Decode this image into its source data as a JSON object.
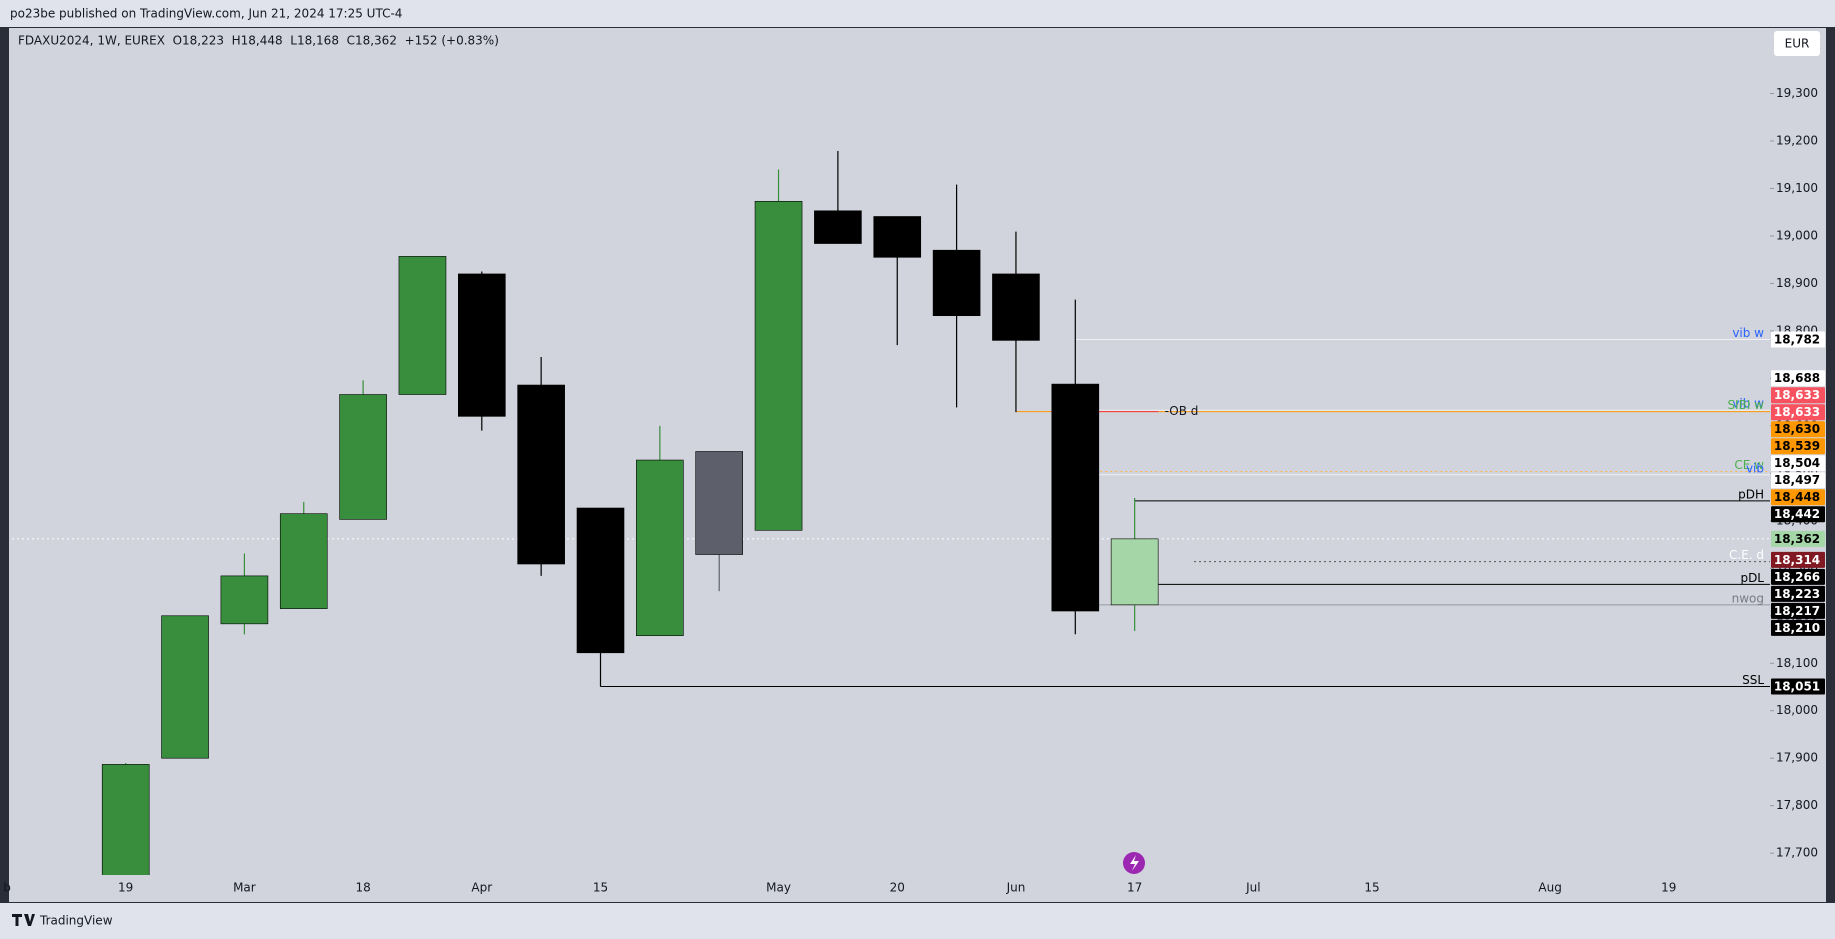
{
  "header": "po23be published on TradingView.com, Jun 21, 2024 17:25 UTC-4",
  "footer": "TradingView",
  "chart_data": {
    "type": "candlestick",
    "title": "FDAXU2024, 1W, EUREX  O18,223  H18,448  L18,168  C18,362  +152 (+0.83%)",
    "currency": "EUR",
    "categories": [
      "b",
      null,
      "19",
      null,
      "Mar",
      null,
      "18",
      null,
      "Apr",
      null,
      "15",
      null,
      null,
      "May",
      null,
      "20",
      null,
      "Jun",
      null,
      "17",
      null,
      "Jul",
      null,
      "15",
      null,
      null,
      "Aug",
      null,
      "19",
      null
    ],
    "open": [
      null,
      null,
      17600,
      17900,
      18183,
      18215,
      18403,
      18666,
      18920,
      18686,
      18427,
      18158,
      18546,
      18380,
      19053,
      19041,
      18970,
      18920,
      18688,
      18223,
      null,
      null,
      null,
      null,
      null,
      null,
      null,
      null,
      null,
      null
    ],
    "high": [
      null,
      null,
      17890,
      18200,
      18331,
      18440,
      18696,
      18957,
      18925,
      18745,
      18427,
      18600,
      18546,
      19140,
      19179,
      19041,
      19108,
      19009,
      18866,
      18448,
      null,
      null,
      null,
      null,
      null,
      null,
      null,
      null,
      null,
      null
    ],
    "low": [
      null,
      null,
      17580,
      17900,
      18161,
      18215,
      18403,
      18666,
      18590,
      18284,
      18051,
      18158,
      18252,
      18380,
      18984,
      18770,
      18639,
      18629,
      18161,
      18168,
      null,
      null,
      null,
      null,
      null,
      null,
      null,
      null,
      null,
      null
    ],
    "close": [
      null,
      null,
      17887,
      18200,
      18284,
      18415,
      18666,
      18957,
      18620,
      18309,
      18122,
      18528,
      18329,
      19073,
      18984,
      18955,
      18832,
      18780,
      18210,
      18362,
      null,
      null,
      null,
      null,
      null,
      null,
      null,
      null,
      null,
      null
    ],
    "colors": [
      null,
      null,
      "#388e3c",
      "#388e3c",
      "#388e3c",
      "#388e3c",
      "#388e3c",
      "#388e3c",
      "#000000",
      "#000000",
      "#000000",
      "#388e3c",
      "#5d606b",
      "#388e3c",
      "#000000",
      "#000000",
      "#000000",
      "#000000",
      "#000000",
      "#a5d6a7",
      null,
      null,
      null,
      null,
      null,
      null,
      null,
      null,
      null,
      null
    ],
    "ylim": [
      17654,
      19438
    ],
    "yticks": [
      {
        "value": 17700,
        "label": "17,700"
      },
      {
        "value": 17800,
        "label": "17,800"
      },
      {
        "value": 17900,
        "label": "17,900"
      },
      {
        "value": 18000,
        "label": "18,000"
      },
      {
        "value": 18100,
        "label": "18,100"
      },
      {
        "value": 18200,
        "label": "18,200"
      },
      {
        "value": 18300,
        "label": "18,300"
      },
      {
        "value": 18400,
        "label": "18,400"
      },
      {
        "value": 18500,
        "label": "18,500"
      },
      {
        "value": 18600,
        "label": "18,600"
      },
      {
        "value": 18700,
        "label": "18,700"
      },
      {
        "value": 18800,
        "label": "18,800"
      },
      {
        "value": 18900,
        "label": "18,900"
      },
      {
        "value": 19000,
        "label": "19,000"
      },
      {
        "value": 19100,
        "label": "19,100"
      },
      {
        "value": 19200,
        "label": "19,200"
      },
      {
        "value": 19300,
        "label": "19,300"
      }
    ],
    "grid": false,
    "levels": [
      {
        "value": 18782,
        "label": "18,782",
        "bg": "#ffffff",
        "fg": "#000000",
        "text": "vib w",
        "text_color": "#2962ff",
        "line": "#f0f0f5",
        "start": 18
      },
      {
        "value": 18688,
        "label": "18,688",
        "bg": "#ffffff",
        "fg": "#000000"
      },
      {
        "value": 18633,
        "label": "18,633",
        "bg": "#f7525f",
        "fg": "#ffffff",
        "text": "vib w",
        "text_color": "#2962ff",
        "line": "#f0f0f5",
        "start": 18
      },
      {
        "value": 18633,
        "label": "18,633",
        "bg": "#f7525f",
        "fg": "#ffffff"
      },
      {
        "value": 18630,
        "label": "18,630",
        "bg": "#ff9800",
        "fg": "#000000",
        "text": "SIBI w",
        "text_color": "#4caf50",
        "line": "#ff9800",
        "start": 17,
        "inner": "-OB d",
        "inner_color": "#f23645"
      },
      {
        "value": 18539,
        "label": "18,539",
        "bg": "#ff9800",
        "fg": "#000000"
      },
      {
        "value": 18504,
        "label": "18,504",
        "bg": "#ffffff",
        "fg": "#000000",
        "text": "CE w",
        "text_color": "#4caf50",
        "line": "#ffb74d",
        "start": 18,
        "dash": true
      },
      {
        "value": 18497,
        "label": "18,497",
        "bg": "#ffffff",
        "fg": "#000000",
        "text": "vib",
        "text_color": "#2962ff",
        "line": "#f0f0f5",
        "start": 18
      },
      {
        "value": 18448,
        "label": "18,448",
        "bg": "#ff9800",
        "fg": "#000000"
      },
      {
        "value": 18442,
        "label": "18,442",
        "bg": "#000000",
        "fg": "#ffffff",
        "text": "pDH",
        "text_color": "#000000",
        "line": "#000000",
        "start": 19
      },
      {
        "value": 18362,
        "label": "18,362",
        "bg": "#a5d6a7",
        "fg": "#000000",
        "line": "#ffffff",
        "start": 0,
        "dash": true
      },
      {
        "value": 18314,
        "label": "18,314",
        "bg": "#801922",
        "fg": "#ffffff",
        "text": "C.E. d",
        "text_color": "#ffffff",
        "line": "#555555",
        "start": 20,
        "dash": true
      },
      {
        "value": 18266,
        "label": "18,266",
        "bg": "#000000",
        "fg": "#ffffff",
        "text": "pDL",
        "text_color": "#000000",
        "line": "#000000",
        "start": 19
      },
      {
        "value": 18223,
        "label": "18,223",
        "bg": "#000000",
        "fg": "#ffffff",
        "text": "nwog",
        "text_color": "#787b86",
        "line": "#9598a1",
        "start": 18
      },
      {
        "value": 18217,
        "label": "18,217",
        "bg": "#000000",
        "fg": "#ffffff"
      },
      {
        "value": 18210,
        "label": "18,210",
        "bg": "#000000",
        "fg": "#ffffff"
      },
      {
        "value": 18051,
        "label": "18,051",
        "bg": "#000000",
        "fg": "#ffffff",
        "text": "SSL",
        "text_color": "#000000",
        "line": "#000000",
        "start": 10
      }
    ]
  }
}
